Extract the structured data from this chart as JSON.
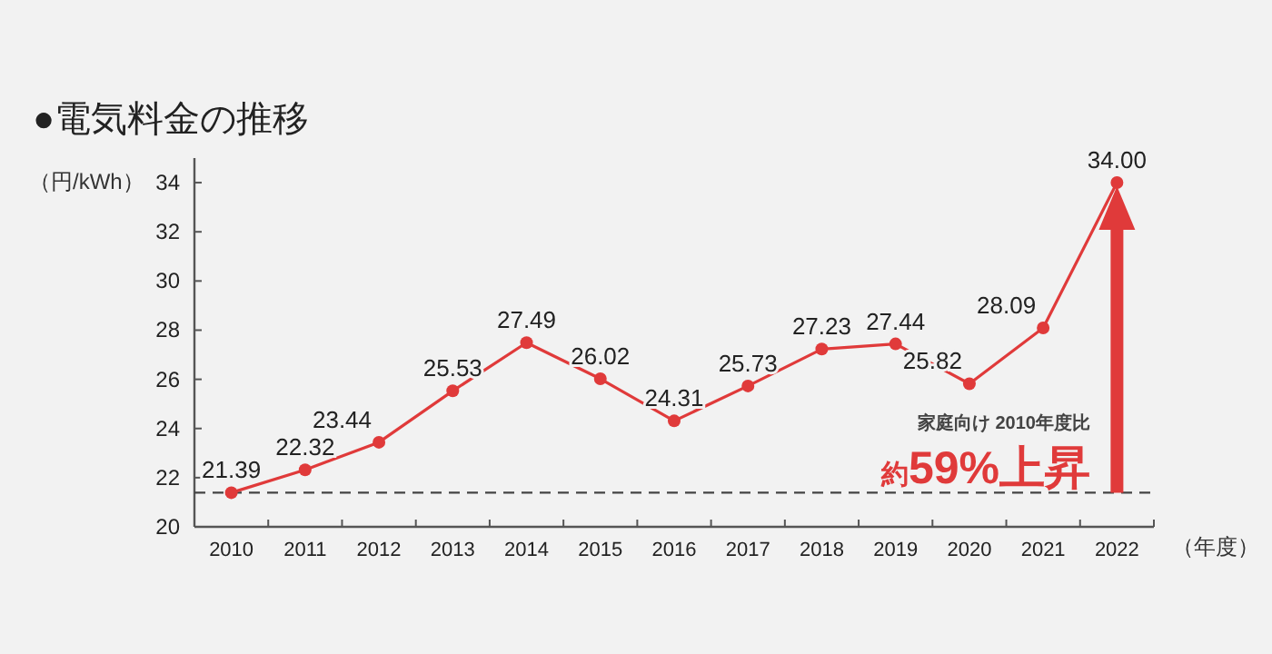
{
  "chart_data": {
    "type": "line",
    "title": "●電気料金の推移",
    "ylabel": "（円/kWh）",
    "xlabel": "（年度）",
    "categories": [
      "2010",
      "2011",
      "2012",
      "2013",
      "2014",
      "2015",
      "2016",
      "2017",
      "2018",
      "2019",
      "2020",
      "2021",
      "2022"
    ],
    "series": [
      {
        "color": "#e03a3a",
        "values": [
          21.39,
          22.32,
          23.44,
          25.53,
          27.49,
          26.02,
          24.31,
          25.73,
          27.23,
          27.44,
          25.82,
          28.09,
          34.0
        ]
      }
    ],
    "value_labels": [
      "21.39",
      "22.32",
      "23.44",
      "25.53",
      "27.49",
      "26.02",
      "24.31",
      "25.73",
      "27.23",
      "27.44",
      "25.82",
      "28.09",
      "34.00"
    ],
    "ylim": [
      20,
      35
    ],
    "yticks": [
      20,
      22,
      24,
      26,
      28,
      30,
      32,
      34
    ],
    "ref_lines": [
      {
        "axis": "y",
        "value": 21.39,
        "color": "#444444",
        "line_style": "dashed"
      }
    ],
    "annotations": [
      "家庭向け 2010年度比",
      "約59%上昇"
    ],
    "marker": "circle",
    "line_style": "solid",
    "grid": false
  }
}
